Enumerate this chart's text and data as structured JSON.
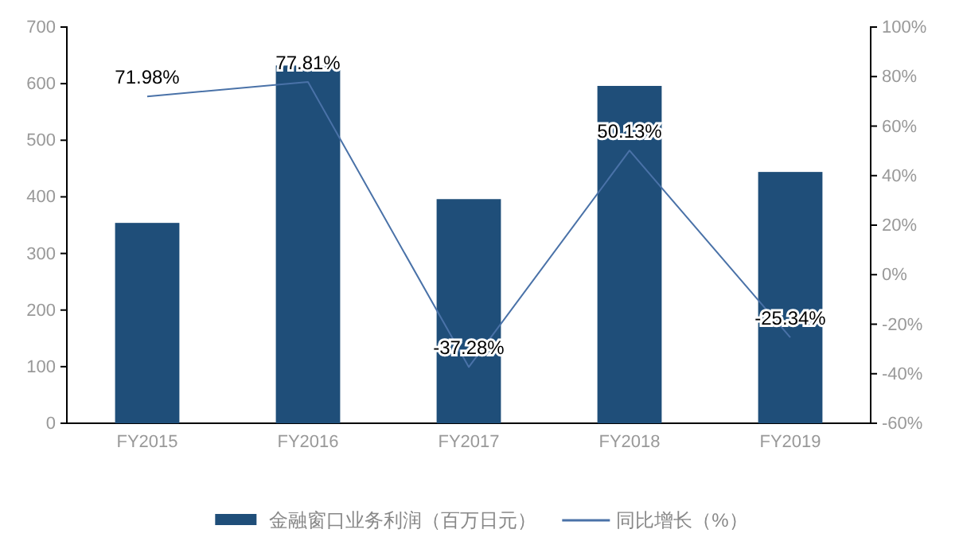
{
  "chart_data": {
    "type": "bar",
    "categories": [
      "FY2015",
      "FY2016",
      "FY2017",
      "FY2018",
      "FY2019"
    ],
    "series": [
      {
        "name": "金融窗口业务利润（百万日元）",
        "color": "#1f4e79",
        "values": [
          354,
          632,
          396,
          596,
          444
        ]
      },
      {
        "name": "同比增长（%）",
        "type": "line",
        "axis": "y2",
        "color": "#4a72a8",
        "values": [
          71.98,
          77.81,
          -37.28,
          50.13,
          -25.34
        ],
        "value_labels": [
          "71.98%",
          "77.81%",
          "-37.28%",
          "50.13%",
          "-25.34%"
        ]
      }
    ],
    "ylim": [
      0,
      700
    ],
    "yticks": [
      0,
      100,
      200,
      300,
      400,
      500,
      600,
      700
    ],
    "y2lim": [
      -60,
      100
    ],
    "y2ticks": [
      {
        "value": -60,
        "label": "-60%"
      },
      {
        "value": -40,
        "label": "-40%"
      },
      {
        "value": -20,
        "label": "-20%"
      },
      {
        "value": 0,
        "label": "0%"
      },
      {
        "value": 20,
        "label": "20%"
      },
      {
        "value": 40,
        "label": "40%"
      },
      {
        "value": 60,
        "label": "60%"
      },
      {
        "value": 80,
        "label": "80%"
      },
      {
        "value": 100,
        "label": "100%"
      }
    ],
    "grid": false,
    "legend": "bottom"
  }
}
